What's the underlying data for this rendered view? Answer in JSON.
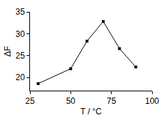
{
  "chart_data": {
    "type": "line",
    "x_label": "T / °C",
    "y_label": "ΔF",
    "x": [
      30,
      50,
      60,
      70,
      80,
      90
    ],
    "values": [
      18.6,
      22.0,
      28.3,
      32.8,
      26.6,
      22.4
    ],
    "color": "#000000",
    "marker": "square",
    "xlim": [
      25,
      100
    ],
    "xticks": [
      25,
      50,
      75,
      100
    ],
    "ylim": [
      17,
      35
    ],
    "yticks": [
      20,
      25,
      30,
      35
    ],
    "grid": false
  }
}
